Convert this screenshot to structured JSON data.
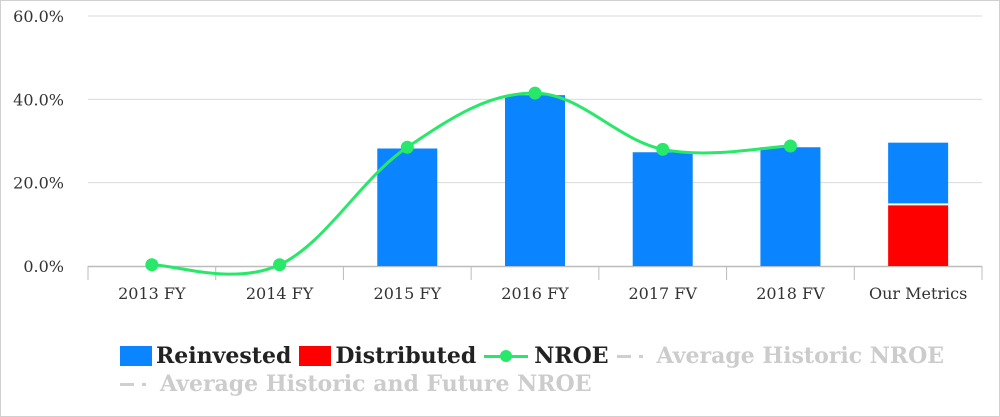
{
  "chart_data": {
    "type": "bar",
    "categories": [
      "2013 FY",
      "2014 FY",
      "2015 FY",
      "2016 FY",
      "2017 FV",
      "2018 FV",
      "Our Metrics"
    ],
    "yticks": [
      "0.0%",
      "20.0%",
      "40.0%",
      "60.0%"
    ],
    "ylim": [
      0,
      60
    ],
    "stacked": true,
    "grid": true,
    "legend_position": "bottom",
    "series": [
      {
        "name": "Reinvested",
        "kind": "bar",
        "color": "#0a84ff",
        "values": [
          0,
          0,
          28.2,
          41.0,
          27.3,
          28.5,
          14.8
        ]
      },
      {
        "name": "Distributed",
        "kind": "bar",
        "color": "#ff0000",
        "values": [
          0,
          0,
          0,
          0,
          0,
          0,
          14.8
        ]
      },
      {
        "name": "NROE",
        "kind": "line",
        "color": "#28e86a",
        "values": [
          0.3,
          0.3,
          28.5,
          41.5,
          28.0,
          28.8,
          null
        ]
      }
    ],
    "legend": [
      {
        "name": "Reinvested",
        "style": "box",
        "color": "#0a84ff",
        "active": true
      },
      {
        "name": "Distributed",
        "style": "box",
        "color": "#ff0000",
        "active": true
      },
      {
        "name": "NROE",
        "style": "line-dot",
        "color": "#28e86a",
        "active": true
      },
      {
        "name": "Average Historic NROE",
        "style": "dash",
        "color": "#cccccc",
        "active": false
      },
      {
        "name": "Average Historic and Future NROE",
        "style": "dash",
        "color": "#cccccc",
        "active": false
      }
    ]
  }
}
